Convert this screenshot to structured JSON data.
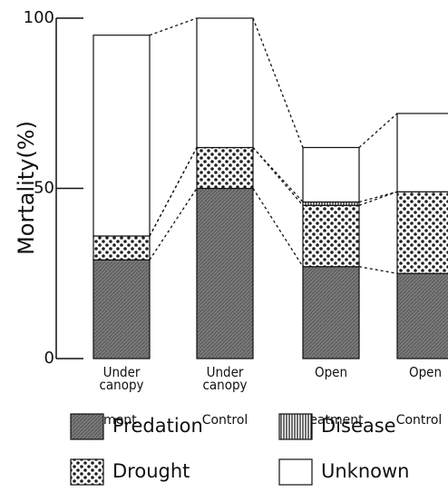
{
  "chart_data": {
    "type": "stacked_bar",
    "y_label": "Mortality(%)",
    "categories": [
      "Under canopy",
      "Under canopy",
      "Open",
      "Open"
    ],
    "subcategories": [
      "Treatment",
      "Control",
      "Treatment",
      "Control"
    ],
    "series": [
      {
        "name": "Predation",
        "color": "#7a7a7a",
        "values": [
          29,
          50,
          27,
          25
        ]
      },
      {
        "name": "Drought",
        "color": "#ffffff",
        "values": [
          7,
          12,
          18,
          24
        ]
      },
      {
        "name": "Disease",
        "color": "#ffffff",
        "values": [
          0,
          0,
          1,
          0
        ]
      },
      {
        "name": "Unknown",
        "color": "#ffffff",
        "values": [
          59,
          38,
          16,
          23
        ]
      }
    ],
    "ylim": [
      0,
      100
    ],
    "yticks": [
      0,
      50,
      100
    ]
  }
}
